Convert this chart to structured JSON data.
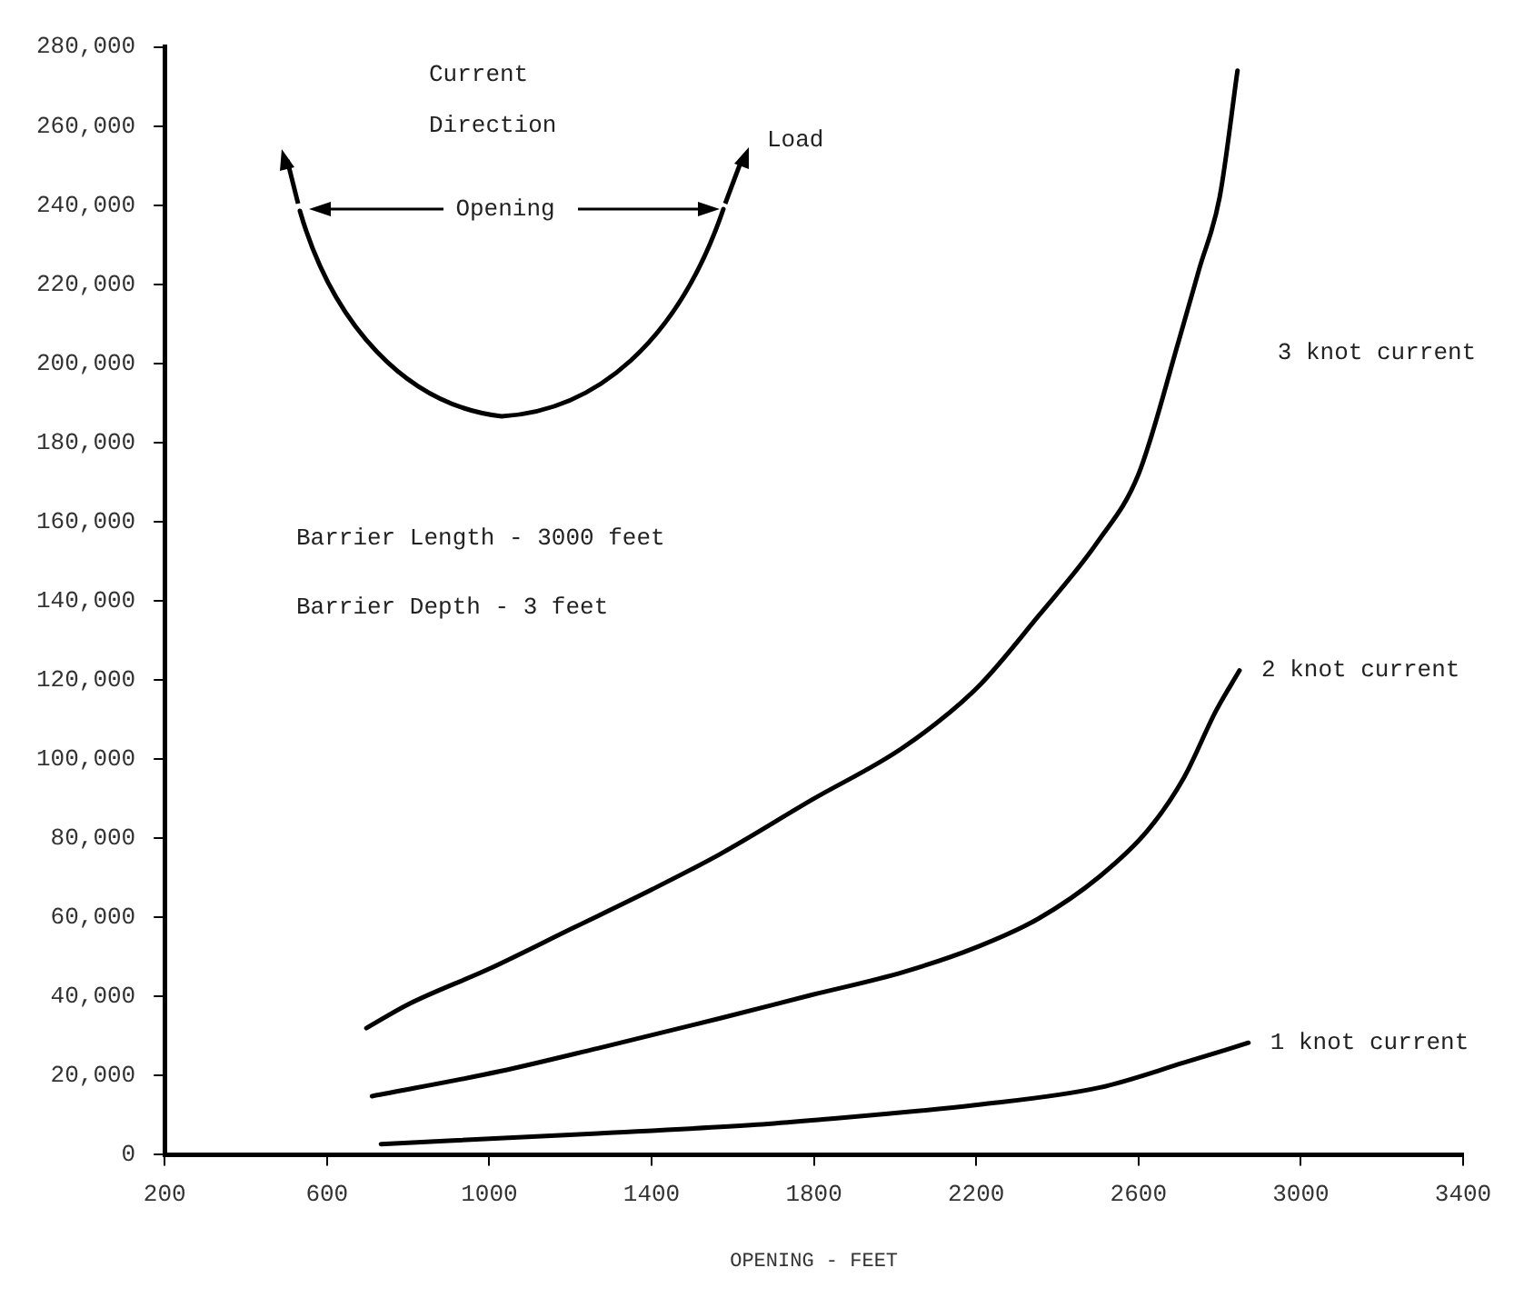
{
  "chart_data": {
    "type": "line",
    "xlabel": "OPENING - FEET",
    "annotations": [
      "Current",
      "Direction",
      "Load",
      "Opening",
      "Barrier Length - 3000 feet",
      "Barrier Depth - 3 feet"
    ],
    "series": [
      {
        "name": "3 knot current",
        "color": "#000000",
        "x": [
          697,
          800,
          1000,
          1200,
          1400,
          1569,
          1795,
          2021,
          2202,
          2352,
          2500,
          2600,
          2700,
          2750,
          2800,
          2844
        ],
        "values": [
          32000,
          38000,
          47000,
          57000,
          67000,
          76000,
          89700,
          103000,
          118000,
          136000,
          155000,
          172000,
          206000,
          224000,
          242000,
          274000
        ]
      },
      {
        "name": "2 knot current",
        "color": "#000000",
        "x": [
          711,
          1027,
          1267,
          1569,
          1795,
          2021,
          2202,
          2352,
          2505,
          2623,
          2713,
          2790,
          2849
        ],
        "values": [
          14800,
          21100,
          26900,
          34500,
          40400,
          46200,
          52500,
          59600,
          70400,
          82000,
          95500,
          112000,
          122400
        ]
      },
      {
        "name": "1 knot current",
        "color": "#000000",
        "x": [
          733,
          1267,
          1660,
          1795,
          2202,
          2505,
          2713,
          2871
        ],
        "values": [
          2700,
          5400,
          7600,
          8700,
          12600,
          17000,
          23300,
          28300
        ]
      }
    ],
    "xlim": [
      200,
      3400
    ],
    "xticks": [
      200,
      600,
      1000,
      1400,
      1800,
      2200,
      2600,
      3000,
      3400
    ],
    "ylim": [
      0,
      280000
    ],
    "yticks": [
      0,
      {
        "value": 20000,
        "label": "20,000"
      },
      {
        "value": 40000,
        "label": "40,000"
      },
      {
        "value": 60000,
        "label": "60,000"
      },
      {
        "value": 80000,
        "label": "80,000"
      },
      {
        "value": 100000,
        "label": "100,000"
      },
      {
        "value": 120000,
        "label": "120,000"
      },
      {
        "value": 140000,
        "label": "140,000"
      },
      {
        "value": 160000,
        "label": "160,000"
      },
      {
        "value": 180000,
        "label": "180,000"
      },
      {
        "value": 200000,
        "label": "200,000"
      },
      {
        "value": 220000,
        "label": "220,000"
      },
      {
        "value": 240000,
        "label": "240,000"
      },
      {
        "value": 260000,
        "label": "260,000"
      },
      {
        "value": 280000,
        "label": "280,000"
      }
    ],
    "grid": false,
    "legend": false,
    "marker": "none",
    "line_style": "solid"
  }
}
